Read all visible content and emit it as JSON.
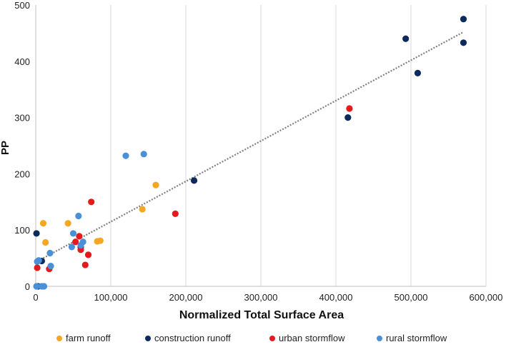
{
  "chart_data": {
    "type": "scatter",
    "xlabel": "Normalized Total Surface Area",
    "ylabel": "PP",
    "xlim": [
      0,
      600000
    ],
    "ylim": [
      0,
      500
    ],
    "x_ticks": [
      0,
      100000,
      200000,
      300000,
      400000,
      500000,
      600000
    ],
    "x_tick_labels": [
      "0",
      "100,000",
      "200,000",
      "300,000",
      "400,000",
      "500,000",
      "600,000"
    ],
    "y_ticks": [
      0,
      100,
      200,
      300,
      400,
      500
    ],
    "y_tick_labels": [
      "0",
      "100",
      "200",
      "300",
      "400",
      "500"
    ],
    "grid": "vertical",
    "legend_position": "bottom",
    "trendline": {
      "style": "dotted",
      "color": "#808080",
      "from": [
        0,
        43
      ],
      "to": [
        570000,
        452
      ]
    },
    "series": [
      {
        "name": "farm runoff",
        "color": "#F5A623",
        "points": [
          [
            10000,
            112
          ],
          [
            13000,
            78
          ],
          [
            43000,
            112
          ],
          [
            82000,
            80
          ],
          [
            86000,
            81
          ],
          [
            142000,
            137
          ],
          [
            160000,
            180
          ]
        ]
      },
      {
        "name": "construction runoff",
        "color": "#0D2A5C",
        "points": [
          [
            1000,
            94
          ],
          [
            8000,
            45
          ],
          [
            3000,
            0
          ],
          [
            60000,
            70
          ],
          [
            211000,
            188
          ],
          [
            416000,
            300
          ],
          [
            493000,
            440
          ],
          [
            509000,
            379
          ],
          [
            570000,
            475
          ],
          [
            570000,
            433
          ]
        ]
      },
      {
        "name": "urban stormflow",
        "color": "#E41A1C",
        "points": [
          [
            2000,
            33
          ],
          [
            18000,
            31
          ],
          [
            53000,
            79
          ],
          [
            58000,
            89
          ],
          [
            60000,
            65
          ],
          [
            66000,
            38
          ],
          [
            70000,
            56
          ],
          [
            74000,
            150
          ],
          [
            186000,
            129
          ],
          [
            418000,
            316
          ]
        ]
      },
      {
        "name": "rural stormflow",
        "color": "#4A90D9",
        "points": [
          [
            2000,
            44
          ],
          [
            4000,
            46
          ],
          [
            1000,
            0
          ],
          [
            8000,
            0
          ],
          [
            11000,
            0
          ],
          [
            19000,
            59
          ],
          [
            20000,
            36
          ],
          [
            48000,
            70
          ],
          [
            50000,
            94
          ],
          [
            57000,
            125
          ],
          [
            60000,
            73
          ],
          [
            63000,
            79
          ],
          [
            120000,
            232
          ],
          [
            144000,
            235
          ]
        ]
      }
    ]
  }
}
